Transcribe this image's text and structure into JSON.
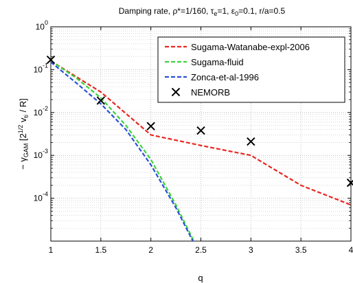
{
  "chart_data": {
    "type": "line",
    "xlabel": "q",
    "ylabel": "GAM",
    "xlim": [
      1,
      4
    ],
    "ylim": [
      1e-05,
      1
    ],
    "yscale": "log",
    "grid": true,
    "legend_position": "top-right",
    "xticks": [
      "1",
      "1.5",
      "2",
      "2.5",
      "3",
      "3.5",
      "4"
    ],
    "yticks": [
      {
        "value": 1,
        "exp": "0"
      },
      {
        "value": 0.1,
        "exp": "-1"
      },
      {
        "value": 0.01,
        "exp": "-2"
      },
      {
        "value": 0.001,
        "exp": "-3"
      },
      {
        "value": 0.0001,
        "exp": "-4"
      }
    ],
    "series": [
      {
        "name": "Sugama-Watanabe-expl-2006",
        "style": "dashed",
        "color": "#e8261f",
        "x": [
          1.0,
          1.5,
          2.0,
          2.5,
          3.0,
          3.5,
          4.0
        ],
        "y": [
          0.16,
          0.03,
          0.003,
          0.0017,
          0.001,
          0.0002,
          7e-05
        ]
      },
      {
        "name": "Sugama-fluid",
        "style": "dashed",
        "color": "#3ad43a",
        "x": [
          1.0,
          1.25,
          1.5,
          1.75,
          2.0,
          2.25,
          2.43
        ],
        "y": [
          0.16,
          0.065,
          0.022,
          0.005,
          0.0008,
          7e-05,
          1e-05
        ]
      },
      {
        "name": "Zonca-et-al-1996",
        "style": "dashed",
        "color": "#2a4fd8",
        "x": [
          1.0,
          1.25,
          1.5,
          1.75,
          2.0,
          2.25,
          2.42
        ],
        "y": [
          0.15,
          0.05,
          0.016,
          0.004,
          0.0006,
          6e-05,
          1e-05
        ]
      },
      {
        "name": "NEMORB",
        "style": "markers",
        "marker": "x",
        "color": "#000000",
        "x": [
          1.0,
          1.5,
          2.0,
          2.5,
          3.0,
          4.0
        ],
        "y": [
          0.17,
          0.019,
          0.0048,
          0.0038,
          0.0021,
          0.00023
        ]
      }
    ]
  }
}
